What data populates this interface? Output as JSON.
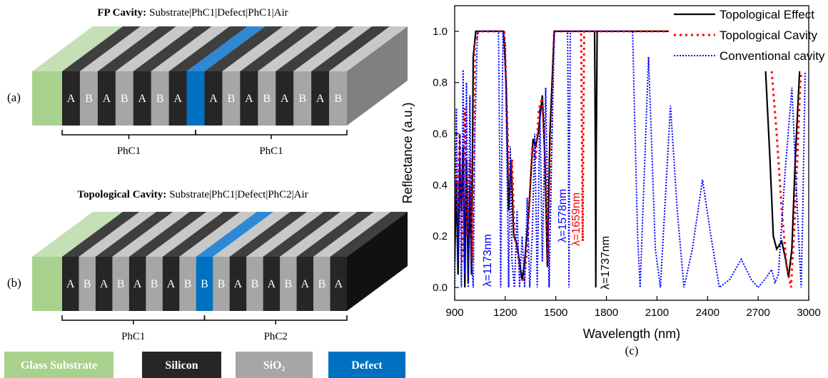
{
  "panel_a": {
    "label": "(a)",
    "title_bold": "FP Cavity:",
    "title_rest": "Substrate|PhC1|Defect|PhC1|Air",
    "left": [
      "A",
      "B",
      "A",
      "B",
      "A",
      "B",
      "A"
    ],
    "defect": null,
    "right": [
      "A",
      "B",
      "A",
      "B",
      "A",
      "B",
      "A",
      "B"
    ],
    "brackets": [
      "PhC1",
      "PhC1"
    ]
  },
  "panel_b": {
    "label": "(b)",
    "title_bold": "Topological Cavity:",
    "title_rest": "Substrate|PhC1|Defect|PhC2|Air",
    "left": [
      "A",
      "B",
      "A",
      "B",
      "A",
      "B",
      "A",
      "B"
    ],
    "defect": "B",
    "right": [
      "B",
      "A",
      "B",
      "A",
      "B",
      "A",
      "B",
      "A"
    ],
    "brackets": [
      "PhC1",
      "PhC2"
    ]
  },
  "materials": [
    {
      "name": "Glass Substrate",
      "color": "#a9d18e"
    },
    {
      "name": "Silicon",
      "color": "#262626"
    },
    {
      "name": "SiO₂",
      "color": "#a6a6a6"
    },
    {
      "name": "Defect",
      "color": "#0070c0"
    }
  ],
  "chart_data": {
    "type": "line",
    "panel_label": "(c)",
    "x_label": "Wavelength (nm)",
    "y_label": "Reflectance (a.u.)",
    "xlim": [
      900,
      3000
    ],
    "xticks": [
      900,
      1200,
      1500,
      1800,
      2100,
      2400,
      2700,
      3000
    ],
    "ylim": [
      -0.05,
      1.1
    ],
    "yticks": [
      {
        "value": 0,
        "label": "0.0"
      },
      0.2,
      0.4,
      0.6,
      0.8,
      {
        "value": 1,
        "label": "1.0"
      }
    ],
    "legend": "upper right",
    "series": [
      {
        "name": "Topological Effect",
        "color": "#000000",
        "linestyle": "solid",
        "x": [
          900,
          910,
          920,
          930,
          940,
          950,
          960,
          970,
          980,
          990,
          1000,
          1010,
          1025,
          1040,
          1190,
          1205,
          1220,
          1235,
          1250,
          1265,
          1280,
          1300,
          1315,
          1340,
          1365,
          1380,
          1395,
          1420,
          1435,
          1450,
          1465,
          1490,
          1730,
          1735,
          1737,
          1739,
          1745,
          2700,
          2740,
          2770,
          2790,
          2810,
          2840,
          2860,
          2880,
          2900,
          2920,
          2950,
          2975,
          3000
        ],
        "values": [
          0.1,
          0.42,
          0.05,
          0.5,
          0.3,
          0.55,
          0.0,
          0.5,
          0.02,
          0.4,
          0.05,
          0.9,
          1.0,
          1.0,
          1.0,
          0.8,
          0.3,
          0.5,
          0.2,
          0.18,
          0.12,
          0.03,
          0.1,
          0.3,
          0.58,
          0.55,
          0.6,
          0.75,
          0.5,
          0.08,
          0.6,
          1.0,
          1.0,
          0.5,
          0.0,
          0.5,
          1.0,
          1.0,
          0.9,
          0.5,
          0.2,
          0.15,
          0.18,
          0.12,
          0.04,
          0.15,
          0.5,
          0.9,
          1.0,
          1.0
        ]
      },
      {
        "name": "Topological Cavity",
        "color": "#ff0000",
        "linestyle": "dot",
        "x": [
          900,
          915,
          930,
          945,
          960,
          975,
          990,
          1005,
          1020,
          1040,
          1195,
          1210,
          1225,
          1240,
          1255,
          1270,
          1290,
          1310,
          1330,
          1360,
          1380,
          1400,
          1420,
          1440,
          1455,
          1470,
          1490,
          1650,
          1655,
          1659,
          1663,
          1668,
          2740,
          2780,
          2810,
          2840,
          2870,
          2895,
          2920,
          2950,
          2980,
          3000
        ],
        "values": [
          0.55,
          0.3,
          0.6,
          0.1,
          0.7,
          0.2,
          0.5,
          0.1,
          0.95,
          1.0,
          1.0,
          0.7,
          0.35,
          0.5,
          0.2,
          0.15,
          0.05,
          0.02,
          0.15,
          0.55,
          0.5,
          0.7,
          0.74,
          0.45,
          0.1,
          0.5,
          1.0,
          1.0,
          0.6,
          0.18,
          0.6,
          1.0,
          1.0,
          0.85,
          0.6,
          0.3,
          0.08,
          0.0,
          0.3,
          0.8,
          1.0,
          1.0
        ]
      },
      {
        "name": "Conventional cavity",
        "color": "#0000ff",
        "linestyle": "dot",
        "x": [
          900,
          910,
          920,
          930,
          940,
          950,
          960,
          970,
          980,
          990,
          1000,
          1010,
          1020,
          1035,
          1050,
          1160,
          1167,
          1173,
          1179,
          1186,
          1200,
          1210,
          1220,
          1230,
          1240,
          1255,
          1270,
          1285,
          1300,
          1315,
          1330,
          1345,
          1360,
          1375,
          1390,
          1405,
          1420,
          1440,
          1460,
          1475,
          1490,
          1570,
          1575,
          1578,
          1581,
          1586,
          1955,
          1970,
          1985,
          2000,
          2050,
          2090,
          2120,
          2180,
          2220,
          2260,
          2310,
          2370,
          2420,
          2470,
          2530,
          2600,
          2660,
          2700,
          2750,
          2780,
          2800,
          2820,
          2860,
          2900,
          2940,
          2955,
          2965,
          2980,
          3000
        ],
        "values": [
          0.0,
          0.7,
          0.1,
          0.6,
          0.0,
          0.85,
          0.05,
          0.8,
          0.0,
          0.75,
          0.1,
          0.0,
          0.6,
          1.0,
          1.0,
          1.0,
          0.5,
          0.0,
          0.5,
          1.0,
          0.95,
          0.5,
          0.0,
          0.55,
          0.1,
          0.0,
          0.3,
          0.0,
          0.2,
          0.0,
          0.35,
          0.0,
          0.2,
          0.6,
          0.0,
          0.7,
          0.1,
          0.78,
          0.0,
          0.5,
          1.0,
          1.0,
          0.5,
          0.0,
          0.5,
          1.0,
          1.0,
          0.6,
          0.2,
          0.0,
          0.9,
          0.15,
          0.0,
          0.71,
          0.3,
          0.0,
          0.15,
          0.42,
          0.2,
          0.0,
          0.03,
          0.11,
          0.03,
          0.0,
          0.04,
          0.07,
          0.02,
          0.05,
          0.45,
          0.78,
          0.2,
          0.0,
          0.3,
          0.9,
          1.0
        ]
      }
    ],
    "annotations": [
      {
        "text": "λ=1173nm",
        "color": "#0000ff"
      },
      {
        "text": "λ=1578nm",
        "color": "#0000ff"
      },
      {
        "text": "λ=1659nm",
        "color": "#ff0000"
      },
      {
        "text": "λ=1737nm",
        "color": "#000000"
      }
    ]
  }
}
